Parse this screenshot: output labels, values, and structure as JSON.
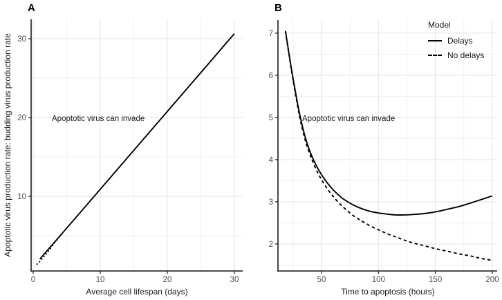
{
  "figure": {
    "background": "#ffffff",
    "colors": {
      "curve": "#000000",
      "axis_line": "#333333",
      "tick_mark": "#333333",
      "tick_label": "#4d4d4d",
      "grid_major": "#e3e3e3",
      "grid_minor": "#f0f0f0",
      "text": "#1a1a1a"
    }
  },
  "chart_data": [
    {
      "panel": "A",
      "type": "line",
      "xlabel": "Average cell lifespan (days)",
      "ylabel": "Apoptotic virus production rate: budding virus production rate",
      "annotation": "Apoptotic virus can invade",
      "annotation_xy": [
        2.8,
        20.0
      ],
      "xlim": [
        -0.31,
        31.24
      ],
      "ylim": [
        0.53,
        32.46
      ],
      "xticks": [
        0,
        10,
        20,
        30
      ],
      "yticks": [
        10,
        20,
        30
      ],
      "xminor": [
        5,
        15,
        25
      ],
      "yminor": [
        5,
        15,
        25
      ],
      "grid": true,
      "series": [
        {
          "name": "Delays",
          "style": "solid",
          "points": [
            [
              1,
              2.05
            ],
            [
              3,
              4.0
            ],
            [
              6,
              6.95
            ],
            [
              10,
              10.9
            ],
            [
              14,
              14.85
            ],
            [
              18,
              18.8
            ],
            [
              22,
              22.75
            ],
            [
              26,
              26.7
            ],
            [
              30,
              30.65
            ]
          ]
        },
        {
          "name": "No delays",
          "style": "dashed",
          "points": [
            [
              0.5,
              1.35
            ],
            [
              1,
              1.75
            ],
            [
              1.6,
              2.35
            ],
            [
              2.3,
              3.1
            ],
            [
              3.2,
              4.1
            ],
            [
              4.2,
              5.2
            ]
          ]
        }
      ]
    },
    {
      "panel": "B",
      "type": "line",
      "xlabel": "Time to apoptosis (hours)",
      "ylabel": "",
      "annotation": "Apoptotic virus can invade",
      "annotation_xy": [
        33.0,
        5.0
      ],
      "xlim": [
        11.7,
        204.3
      ],
      "ylim": [
        1.36,
        7.31
      ],
      "xticks": [
        50,
        100,
        150,
        200
      ],
      "yticks": [
        2,
        3,
        4,
        5,
        6,
        7
      ],
      "xminor": [
        25,
        75,
        125,
        175
      ],
      "yminor": [
        1.5,
        2.5,
        3.5,
        4.5,
        5.5,
        6.5
      ],
      "grid": true,
      "legend": {
        "title": "Model",
        "entries": [
          {
            "label": "Delays",
            "style": "solid"
          },
          {
            "label": "No delays",
            "style": "dashed"
          }
        ]
      },
      "series": [
        {
          "name": "Delays",
          "style": "solid",
          "points": [
            [
              18.3,
              7.05
            ],
            [
              20,
              6.75
            ],
            [
              22,
              6.4
            ],
            [
              24,
              6.08
            ],
            [
              26,
              5.77
            ],
            [
              28,
              5.47
            ],
            [
              30,
              5.18
            ],
            [
              32,
              4.93
            ],
            [
              34,
              4.7
            ],
            [
              36,
              4.5
            ],
            [
              38,
              4.33
            ],
            [
              40,
              4.18
            ],
            [
              42,
              4.05
            ],
            [
              45,
              3.88
            ],
            [
              48,
              3.73
            ],
            [
              51,
              3.6
            ],
            [
              55,
              3.45
            ],
            [
              59,
              3.32
            ],
            [
              63,
              3.21
            ],
            [
              68,
              3.09
            ],
            [
              73,
              3.0
            ],
            [
              79,
              2.91
            ],
            [
              85,
              2.84
            ],
            [
              92,
              2.78
            ],
            [
              99,
              2.74
            ],
            [
              107,
              2.71
            ],
            [
              115,
              2.69
            ],
            [
              123,
              2.69
            ],
            [
              131,
              2.7
            ],
            [
              140,
              2.72
            ],
            [
              150,
              2.76
            ],
            [
              160,
              2.82
            ],
            [
              171,
              2.89
            ],
            [
              182,
              2.98
            ],
            [
              191,
              3.06
            ],
            [
              200,
              3.14
            ]
          ]
        },
        {
          "name": "No delays",
          "style": "dashed",
          "points": [
            [
              18.3,
              7.05
            ],
            [
              20,
              6.73
            ],
            [
              22,
              6.38
            ],
            [
              24,
              6.05
            ],
            [
              26,
              5.73
            ],
            [
              28,
              5.42
            ],
            [
              30,
              5.12
            ],
            [
              32,
              4.86
            ],
            [
              34,
              4.63
            ],
            [
              36,
              4.43
            ],
            [
              38,
              4.26
            ],
            [
              40,
              4.11
            ],
            [
              42,
              3.97
            ],
            [
              45,
              3.78
            ],
            [
              48,
              3.62
            ],
            [
              51,
              3.48
            ],
            [
              55,
              3.31
            ],
            [
              59,
              3.17
            ],
            [
              63,
              3.04
            ],
            [
              68,
              2.9
            ],
            [
              73,
              2.78
            ],
            [
              79,
              2.65
            ],
            [
              85,
              2.55
            ],
            [
              92,
              2.44
            ],
            [
              99,
              2.35
            ],
            [
              107,
              2.25
            ],
            [
              115,
              2.17
            ],
            [
              123,
              2.09
            ],
            [
              131,
              2.02
            ],
            [
              140,
              1.96
            ],
            [
              150,
              1.89
            ],
            [
              160,
              1.83
            ],
            [
              170,
              1.77
            ],
            [
              180,
              1.72
            ],
            [
              190,
              1.66
            ],
            [
              200,
              1.61
            ]
          ]
        }
      ]
    }
  ]
}
